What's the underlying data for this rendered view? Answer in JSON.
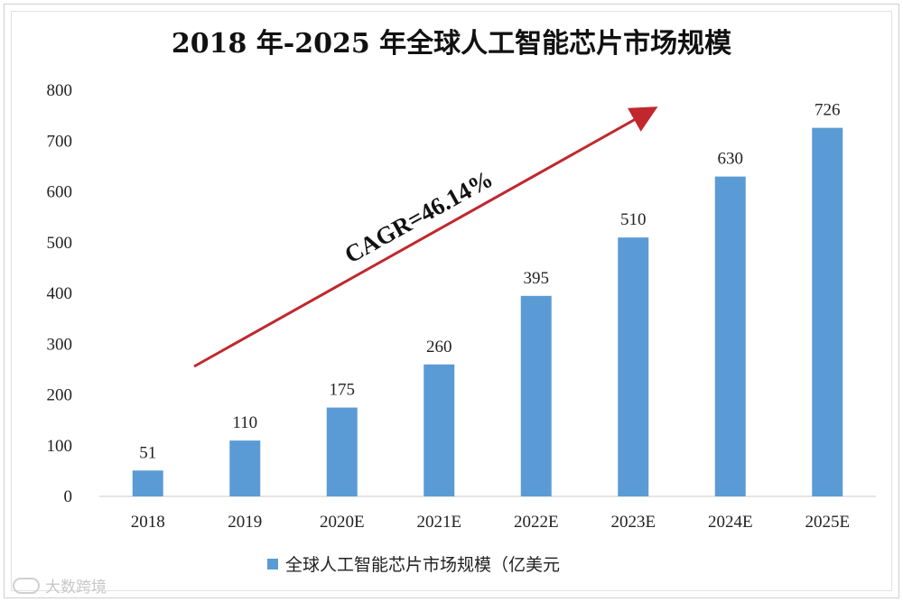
{
  "chart_data": {
    "type": "bar",
    "title": "2018 年-2025 年全球人工智能芯片市场规模",
    "categories": [
      "2018",
      "2019",
      "2020E",
      "2021E",
      "2022E",
      "2023E",
      "2024E",
      "2025E"
    ],
    "values": [
      51,
      110,
      175,
      260,
      395,
      510,
      630,
      726
    ],
    "value_labels": [
      "51",
      "110",
      "175",
      "260",
      "395",
      "510",
      "630",
      "726"
    ],
    "ylim": [
      0,
      800
    ],
    "yticks": [
      "0",
      "100",
      "200",
      "300",
      "400",
      "500",
      "600",
      "700",
      "800"
    ],
    "ytick_values": [
      0,
      100,
      200,
      300,
      400,
      500,
      600,
      700,
      800
    ],
    "grid": false,
    "legend_position": "bottom",
    "series": [
      {
        "name": "全球人工智能芯片市场规模（亿美元",
        "color": "#5b9bd5"
      }
    ],
    "annotation": {
      "text": "CAGR=46.14%",
      "arrow_color": "#c0282d"
    }
  },
  "watermark": {
    "text": "大数跨境"
  }
}
